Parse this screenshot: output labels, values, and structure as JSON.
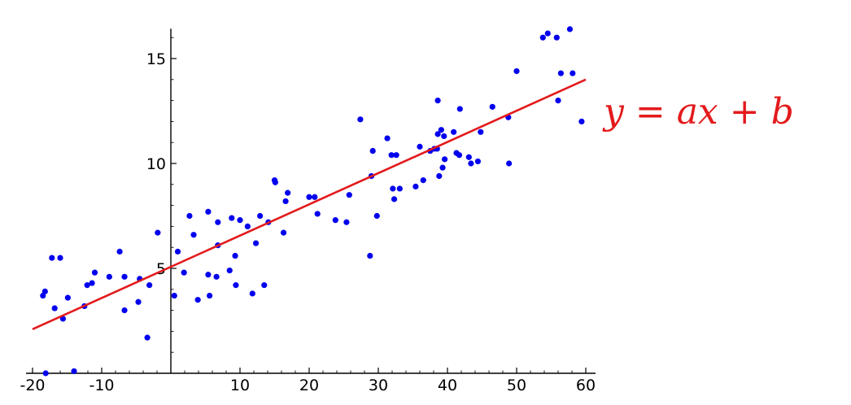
{
  "chart_data": {
    "type": "scatter",
    "title": "",
    "xlabel": "",
    "ylabel": "",
    "xlim": [
      -20,
      60
    ],
    "ylim": [
      0,
      16.5
    ],
    "x_ticks": [
      -20,
      -10,
      10,
      20,
      30,
      40,
      50,
      60
    ],
    "x_tick_labels": [
      "-20",
      "-10",
      "10",
      "20",
      "30",
      "40",
      "50",
      "60"
    ],
    "y_ticks": [
      5,
      10,
      15
    ],
    "y_tick_labels": [
      "5",
      "10",
      "15"
    ],
    "grid": false,
    "point_color": "#0000ee",
    "line_color": "#e31a1c",
    "fit_line": {
      "x": [
        -20,
        60
      ],
      "y": [
        2.1,
        14.0
      ]
    },
    "annotation": "y = ax + b",
    "points": [
      [
        -18.5,
        3.7
      ],
      [
        -18.2,
        3.9
      ],
      [
        -18.1,
        0.0
      ],
      [
        -17.2,
        5.5
      ],
      [
        -16.8,
        3.1
      ],
      [
        -16.0,
        5.5
      ],
      [
        -15.6,
        2.6
      ],
      [
        -14.9,
        3.6
      ],
      [
        -14.0,
        0.1
      ],
      [
        -12.5,
        3.2
      ],
      [
        -12.1,
        4.2
      ],
      [
        -11.4,
        4.3
      ],
      [
        -11.0,
        4.8
      ],
      [
        -8.9,
        4.6
      ],
      [
        -7.4,
        5.8
      ],
      [
        -6.7,
        4.6
      ],
      [
        -6.7,
        3.0
      ],
      [
        -4.7,
        3.4
      ],
      [
        -4.5,
        4.5
      ],
      [
        -3.4,
        1.7
      ],
      [
        -3.1,
        4.2
      ],
      [
        -1.9,
        6.7
      ],
      [
        0.5,
        3.7
      ],
      [
        1.0,
        5.8
      ],
      [
        1.9,
        4.8
      ],
      [
        2.7,
        7.5
      ],
      [
        3.3,
        6.6
      ],
      [
        3.9,
        3.5
      ],
      [
        5.4,
        4.7
      ],
      [
        5.4,
        7.7
      ],
      [
        5.6,
        3.7
      ],
      [
        6.6,
        4.6
      ],
      [
        6.8,
        7.2
      ],
      [
        6.8,
        6.1
      ],
      [
        8.5,
        4.9
      ],
      [
        8.8,
        7.4
      ],
      [
        9.3,
        5.6
      ],
      [
        9.4,
        4.2
      ],
      [
        10.0,
        7.3
      ],
      [
        11.1,
        7.0
      ],
      [
        11.8,
        3.8
      ],
      [
        12.3,
        6.2
      ],
      [
        12.9,
        7.5
      ],
      [
        13.5,
        4.2
      ],
      [
        14.1,
        7.2
      ],
      [
        15.0,
        9.2
      ],
      [
        15.1,
        9.1
      ],
      [
        16.3,
        6.7
      ],
      [
        16.6,
        8.2
      ],
      [
        16.9,
        8.6
      ],
      [
        20.0,
        8.4
      ],
      [
        20.8,
        8.4
      ],
      [
        21.2,
        7.6
      ],
      [
        23.8,
        7.3
      ],
      [
        25.4,
        7.2
      ],
      [
        25.8,
        8.5
      ],
      [
        27.4,
        12.1
      ],
      [
        28.8,
        5.6
      ],
      [
        29.0,
        9.4
      ],
      [
        29.2,
        10.6
      ],
      [
        29.8,
        7.5
      ],
      [
        31.3,
        11.2
      ],
      [
        31.9,
        10.4
      ],
      [
        32.1,
        8.8
      ],
      [
        32.3,
        8.3
      ],
      [
        32.6,
        10.4
      ],
      [
        33.1,
        8.8
      ],
      [
        35.4,
        8.9
      ],
      [
        36.0,
        10.8
      ],
      [
        36.5,
        9.2
      ],
      [
        37.5,
        10.6
      ],
      [
        38.1,
        10.7
      ],
      [
        38.5,
        10.7
      ],
      [
        38.6,
        11.4
      ],
      [
        38.6,
        13.0
      ],
      [
        38.8,
        9.4
      ],
      [
        39.1,
        11.6
      ],
      [
        39.3,
        9.8
      ],
      [
        39.5,
        11.3
      ],
      [
        39.6,
        10.2
      ],
      [
        40.9,
        11.5
      ],
      [
        41.3,
        10.5
      ],
      [
        41.7,
        10.4
      ],
      [
        41.8,
        12.6
      ],
      [
        43.1,
        10.3
      ],
      [
        43.4,
        10.0
      ],
      [
        44.4,
        10.1
      ],
      [
        44.8,
        11.5
      ],
      [
        46.5,
        12.7
      ],
      [
        48.8,
        12.2
      ],
      [
        48.9,
        10.0
      ],
      [
        50.0,
        14.4
      ],
      [
        53.8,
        16.0
      ],
      [
        54.5,
        16.2
      ],
      [
        55.8,
        16.0
      ],
      [
        56.0,
        13.0
      ],
      [
        56.4,
        14.3
      ],
      [
        57.7,
        16.4
      ],
      [
        58.1,
        14.3
      ],
      [
        59.4,
        12.0
      ]
    ]
  }
}
